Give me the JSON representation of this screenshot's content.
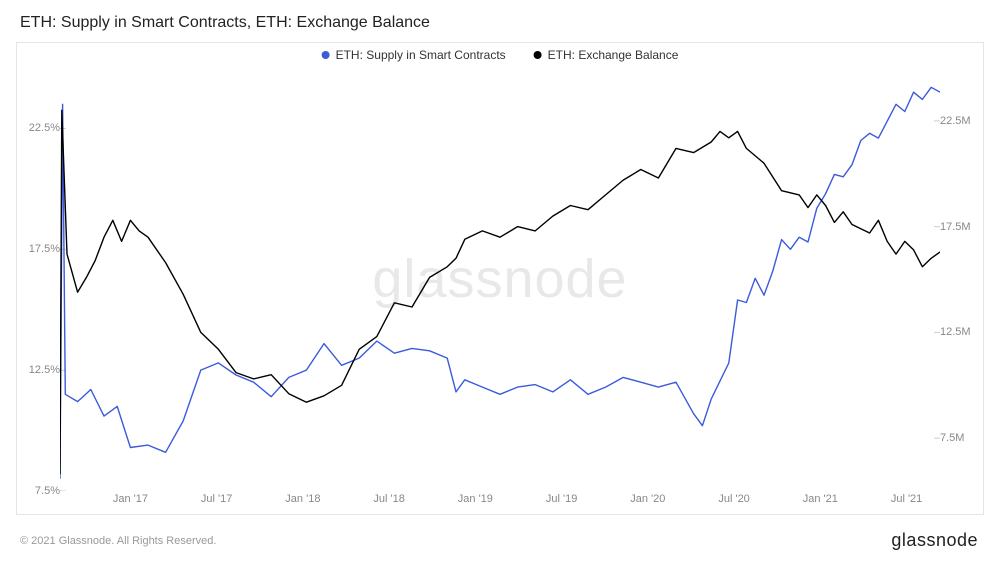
{
  "title": "ETH: Supply in Smart Contracts, ETH: Exchange Balance",
  "watermark": "glassnode",
  "footer_copyright": "© 2021 Glassnode. All Rights Reserved.",
  "footer_brand": "glassnode",
  "legend": [
    {
      "label": "ETH: Supply in Smart Contracts",
      "color": "#3b5bdb"
    },
    {
      "label": "ETH: Exchange Balance",
      "color": "#000000"
    }
  ],
  "chart": {
    "type": "line",
    "background_color": "#ffffff",
    "border_color": "#e5e5e5",
    "watermark_color": "#e8e8e8",
    "line_width": 1.4,
    "x_axis": {
      "ticks": [
        "Jan '17",
        "Jul '17",
        "Jan '18",
        "Jul '18",
        "Jan '19",
        "Jul '19",
        "Jan '20",
        "Jul '20",
        "Jan '21",
        "Jul '21"
      ],
      "tick_positions_pct": [
        8,
        17.8,
        27.6,
        37.4,
        47.2,
        57,
        66.8,
        76.6,
        86.4,
        96.2
      ],
      "label_color": "#888888",
      "label_fontsize": 11
    },
    "y_left": {
      "unit": "%",
      "min": 7.5,
      "max": 25,
      "ticks": [
        7.5,
        12.5,
        17.5,
        22.5
      ],
      "tick_labels": [
        "7.5%",
        "12.5%",
        "17.5%",
        "22.5%"
      ],
      "label_color": "#888888",
      "label_fontsize": 11,
      "tick_color": "#cccccc"
    },
    "y_right": {
      "unit": "M",
      "min": 5,
      "max": 25,
      "ticks": [
        7.5,
        12.5,
        17.5,
        22.5
      ],
      "tick_labels": [
        "7.5M",
        "12.5M",
        "17.5M",
        "22.5M"
      ],
      "label_color": "#888888",
      "label_fontsize": 11,
      "tick_color": "#cccccc"
    },
    "series": [
      {
        "name": "ETH: Supply in Smart Contracts",
        "color": "#3b5bdb",
        "axis": "left",
        "data": [
          [
            0,
            8.0
          ],
          [
            0.3,
            23.5
          ],
          [
            0.6,
            11.5
          ],
          [
            2,
            11.2
          ],
          [
            3.5,
            11.7
          ],
          [
            5,
            10.6
          ],
          [
            6.5,
            11.0
          ],
          [
            8,
            9.3
          ],
          [
            10,
            9.4
          ],
          [
            12,
            9.1
          ],
          [
            14,
            10.4
          ],
          [
            16,
            12.5
          ],
          [
            18,
            12.8
          ],
          [
            20,
            12.3
          ],
          [
            22,
            12.0
          ],
          [
            24,
            11.4
          ],
          [
            26,
            12.2
          ],
          [
            28,
            12.5
          ],
          [
            30,
            13.6
          ],
          [
            32,
            12.7
          ],
          [
            34,
            13.0
          ],
          [
            36,
            13.7
          ],
          [
            38,
            13.2
          ],
          [
            40,
            13.4
          ],
          [
            42,
            13.3
          ],
          [
            44,
            13.0
          ],
          [
            45,
            11.6
          ],
          [
            46,
            12.1
          ],
          [
            48,
            11.8
          ],
          [
            50,
            11.5
          ],
          [
            52,
            11.8
          ],
          [
            54,
            11.9
          ],
          [
            56,
            11.6
          ],
          [
            58,
            12.1
          ],
          [
            60,
            11.5
          ],
          [
            62,
            11.8
          ],
          [
            64,
            12.2
          ],
          [
            66,
            12.0
          ],
          [
            68,
            11.8
          ],
          [
            70,
            12.0
          ],
          [
            72,
            10.7
          ],
          [
            73,
            10.2
          ],
          [
            74,
            11.3
          ],
          [
            76,
            12.8
          ],
          [
            77,
            15.4
          ],
          [
            78,
            15.3
          ],
          [
            79,
            16.3
          ],
          [
            80,
            15.6
          ],
          [
            81,
            16.6
          ],
          [
            82,
            17.9
          ],
          [
            83,
            17.5
          ],
          [
            84,
            18.0
          ],
          [
            85,
            17.8
          ],
          [
            86,
            19.2
          ],
          [
            87,
            19.8
          ],
          [
            88,
            20.6
          ],
          [
            89,
            20.5
          ],
          [
            90,
            21.0
          ],
          [
            91,
            22.0
          ],
          [
            92,
            22.3
          ],
          [
            93,
            22.1
          ],
          [
            94,
            22.8
          ],
          [
            95,
            23.5
          ],
          [
            96,
            23.2
          ],
          [
            97,
            24.0
          ],
          [
            98,
            23.7
          ],
          [
            99,
            24.2
          ],
          [
            100,
            24.0
          ]
        ]
      },
      {
        "name": "ETH: Exchange Balance",
        "color": "#000000",
        "axis": "right",
        "data": [
          [
            0,
            5.8
          ],
          [
            0.2,
            23.0
          ],
          [
            0.8,
            16.2
          ],
          [
            2,
            14.4
          ],
          [
            3,
            15.1
          ],
          [
            4,
            15.9
          ],
          [
            5,
            17.0
          ],
          [
            6,
            17.8
          ],
          [
            7,
            16.8
          ],
          [
            8,
            17.8
          ],
          [
            9,
            17.3
          ],
          [
            10,
            17.0
          ],
          [
            12,
            15.8
          ],
          [
            14,
            14.3
          ],
          [
            16,
            12.5
          ],
          [
            18,
            11.7
          ],
          [
            20,
            10.6
          ],
          [
            22,
            10.3
          ],
          [
            24,
            10.5
          ],
          [
            26,
            9.6
          ],
          [
            28,
            9.2
          ],
          [
            30,
            9.5
          ],
          [
            32,
            10.0
          ],
          [
            34,
            11.7
          ],
          [
            36,
            12.3
          ],
          [
            38,
            13.9
          ],
          [
            40,
            13.7
          ],
          [
            42,
            15.1
          ],
          [
            44,
            15.6
          ],
          [
            45,
            16.0
          ],
          [
            46,
            16.9
          ],
          [
            48,
            17.3
          ],
          [
            50,
            17.0
          ],
          [
            52,
            17.5
          ],
          [
            54,
            17.3
          ],
          [
            56,
            18.0
          ],
          [
            58,
            18.5
          ],
          [
            60,
            18.3
          ],
          [
            62,
            19.0
          ],
          [
            64,
            19.7
          ],
          [
            66,
            20.2
          ],
          [
            68,
            19.8
          ],
          [
            70,
            21.2
          ],
          [
            72,
            21.0
          ],
          [
            74,
            21.5
          ],
          [
            75,
            22.0
          ],
          [
            76,
            21.7
          ],
          [
            77,
            22.0
          ],
          [
            78,
            21.2
          ],
          [
            80,
            20.5
          ],
          [
            82,
            19.2
          ],
          [
            84,
            19.0
          ],
          [
            85,
            18.4
          ],
          [
            86,
            19.0
          ],
          [
            87,
            18.5
          ],
          [
            88,
            17.7
          ],
          [
            89,
            18.2
          ],
          [
            90,
            17.6
          ],
          [
            92,
            17.2
          ],
          [
            93,
            17.8
          ],
          [
            94,
            16.8
          ],
          [
            95,
            16.2
          ],
          [
            96,
            16.8
          ],
          [
            97,
            16.4
          ],
          [
            98,
            15.6
          ],
          [
            99,
            16.0
          ],
          [
            100,
            16.3
          ]
        ]
      }
    ]
  }
}
